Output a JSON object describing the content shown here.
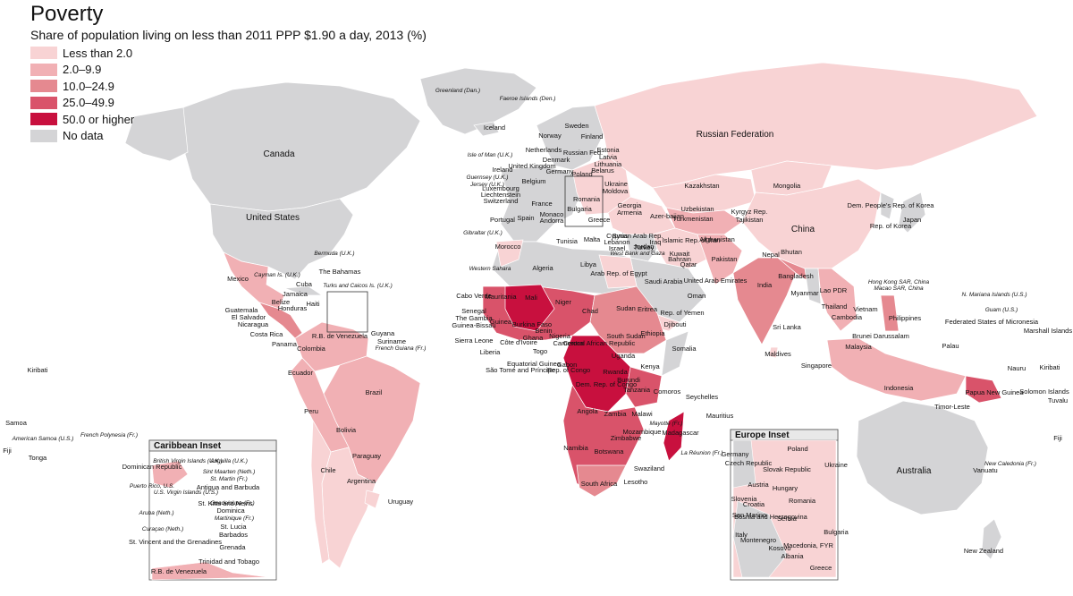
{
  "title": "Poverty",
  "subtitle": "Share of population living on less than 2011 PPP $1.90 a day, 2013 (%)",
  "legend": [
    {
      "label": "Less than 2.0",
      "color": "#f8d3d4"
    },
    {
      "label": "2.0–9.9",
      "color": "#f1b0b4"
    },
    {
      "label": "10.0–24.9",
      "color": "#e58990"
    },
    {
      "label": "25.0–49.9",
      "color": "#d9536a"
    },
    {
      "label": "50.0 or higher",
      "color": "#c8103e"
    },
    {
      "label": "No data",
      "color": "#d4d4d6"
    }
  ],
  "insets": {
    "caribbean": "Caribbean Inset",
    "europe": "Europe Inset"
  },
  "labels": [
    {
      "t": "Greenland (Dan.)",
      "k": "tiny"
    },
    {
      "t": "Faeroe Islands (Den.)",
      "k": "tiny"
    },
    {
      "t": "Iceland"
    },
    {
      "t": "Canada",
      "k": "big"
    },
    {
      "t": "United States",
      "k": "big"
    },
    {
      "t": "Russian Federation",
      "k": "big"
    },
    {
      "t": "Sweden"
    },
    {
      "t": "Norway"
    },
    {
      "t": "Finland"
    },
    {
      "t": "Estonia"
    },
    {
      "t": "Latvia"
    },
    {
      "t": "Lithuania"
    },
    {
      "t": "Russian Fed."
    },
    {
      "t": "Belarus"
    },
    {
      "t": "Netherlands"
    },
    {
      "t": "Denmark"
    },
    {
      "t": "Isle of Man (U.K.)",
      "k": "tiny"
    },
    {
      "t": "United Kingdom"
    },
    {
      "t": "Ireland"
    },
    {
      "t": "Germany"
    },
    {
      "t": "Poland"
    },
    {
      "t": "Guernsey (U.K.)",
      "k": "tiny"
    },
    {
      "t": "Jersey (U.K.)",
      "k": "tiny"
    },
    {
      "t": "Belgium"
    },
    {
      "t": "Luxembourg"
    },
    {
      "t": "Liechtenstein"
    },
    {
      "t": "Switzerland"
    },
    {
      "t": "France"
    },
    {
      "t": "Ukraine"
    },
    {
      "t": "Moldova"
    },
    {
      "t": "Romania"
    },
    {
      "t": "Bulgaria"
    },
    {
      "t": "Greece"
    },
    {
      "t": "Spain"
    },
    {
      "t": "Portugal"
    },
    {
      "t": "Monaco"
    },
    {
      "t": "Andorra"
    },
    {
      "t": "Gibraltar (U.K.)",
      "k": "tiny"
    },
    {
      "t": "Morocco"
    },
    {
      "t": "Tunisia"
    },
    {
      "t": "Malta"
    },
    {
      "t": "Algeria"
    },
    {
      "t": "Libya"
    },
    {
      "t": "Arab Rep. of Egypt"
    },
    {
      "t": "Western Sahara",
      "k": "tiny"
    },
    {
      "t": "Mauritania"
    },
    {
      "t": "Mali"
    },
    {
      "t": "Niger"
    },
    {
      "t": "Chad"
    },
    {
      "t": "Sudan"
    },
    {
      "t": "Eritrea"
    },
    {
      "t": "Cabo Verde"
    },
    {
      "t": "Senegal"
    },
    {
      "t": "The Gambia"
    },
    {
      "t": "Guinea-Bissau"
    },
    {
      "t": "Guinea"
    },
    {
      "t": "Sierra Leone"
    },
    {
      "t": "Liberia"
    },
    {
      "t": "Côte d'Ivoire"
    },
    {
      "t": "Burkina Faso"
    },
    {
      "t": "Ghana"
    },
    {
      "t": "Benin"
    },
    {
      "t": "Togo"
    },
    {
      "t": "Nigeria"
    },
    {
      "t": "Cameroon"
    },
    {
      "t": "Central African Republic"
    },
    {
      "t": "South Sudan"
    },
    {
      "t": "Ethiopia"
    },
    {
      "t": "Djibouti"
    },
    {
      "t": "Somalia"
    },
    {
      "t": "Uganda"
    },
    {
      "t": "Kenya"
    },
    {
      "t": "Rwanda"
    },
    {
      "t": "Burundi"
    },
    {
      "t": "Tanzania"
    },
    {
      "t": "Equatorial Guinea"
    },
    {
      "t": "São Tomé and Príncipe"
    },
    {
      "t": "Gabon"
    },
    {
      "t": "Rep. of Congo"
    },
    {
      "t": "Dem. Rep. of Congo"
    },
    {
      "t": "Angola"
    },
    {
      "t": "Zambia"
    },
    {
      "t": "Malawi"
    },
    {
      "t": "Mozambique"
    },
    {
      "t": "Zimbabwe"
    },
    {
      "t": "Namibia"
    },
    {
      "t": "Botswana"
    },
    {
      "t": "South Africa"
    },
    {
      "t": "Lesotho"
    },
    {
      "t": "Swaziland"
    },
    {
      "t": "Madagascar"
    },
    {
      "t": "Comoros"
    },
    {
      "t": "Mayotte (Fr.)",
      "k": "tiny"
    },
    {
      "t": "Seychelles"
    },
    {
      "t": "Mauritius"
    },
    {
      "t": "La Réunion (Fr.)",
      "k": "tiny"
    },
    {
      "t": "Turkey"
    },
    {
      "t": "Cyprus"
    },
    {
      "t": "Lebanon"
    },
    {
      "t": "Israel"
    },
    {
      "t": "Syrian Arab Rep."
    },
    {
      "t": "Iraq"
    },
    {
      "t": "Jordan"
    },
    {
      "t": "West Bank and Gaza",
      "k": "tiny"
    },
    {
      "t": "Kuwait"
    },
    {
      "t": "Bahrain"
    },
    {
      "t": "Qatar"
    },
    {
      "t": "Saudi Arabia"
    },
    {
      "t": "United Arab Emirates"
    },
    {
      "t": "Oman"
    },
    {
      "t": "Rep. of Yemen"
    },
    {
      "t": "Georgia"
    },
    {
      "t": "Armenia"
    },
    {
      "t": "Azer-baijan"
    },
    {
      "t": "Islamic Rep. of Iran"
    },
    {
      "t": "Kazakhstan"
    },
    {
      "t": "Uzbekistan"
    },
    {
      "t": "Turkmenistan"
    },
    {
      "t": "Kyrgyz Rep."
    },
    {
      "t": "Tajikistan"
    },
    {
      "t": "Afghanistan"
    },
    {
      "t": "Pakistan"
    },
    {
      "t": "India"
    },
    {
      "t": "Nepal"
    },
    {
      "t": "Bhutan"
    },
    {
      "t": "Bangladesh"
    },
    {
      "t": "Sri Lanka"
    },
    {
      "t": "Maldives"
    },
    {
      "t": "Mongolia"
    },
    {
      "t": "China",
      "k": "big"
    },
    {
      "t": "Dem. People's Rep. of Korea"
    },
    {
      "t": "Rep. of Korea"
    },
    {
      "t": "Japan"
    },
    {
      "t": "Myanmar"
    },
    {
      "t": "Lao PDR"
    },
    {
      "t": "Thailand"
    },
    {
      "t": "Vietnam"
    },
    {
      "t": "Cambodia"
    },
    {
      "t": "Hong Kong SAR, China",
      "k": "tiny"
    },
    {
      "t": "Macao SAR, China",
      "k": "tiny"
    },
    {
      "t": "Philippines"
    },
    {
      "t": "Brunei Darussalam"
    },
    {
      "t": "Malaysia"
    },
    {
      "t": "Singapore"
    },
    {
      "t": "Indonesia"
    },
    {
      "t": "Timor-Leste"
    },
    {
      "t": "Papua New Guinea"
    },
    {
      "t": "Australia",
      "k": "big"
    },
    {
      "t": "New Zealand"
    },
    {
      "t": "N. Mariana Islands (U.S.)",
      "k": "tiny"
    },
    {
      "t": "Guam (U.S.)",
      "k": "tiny"
    },
    {
      "t": "Federated States of Micronesia"
    },
    {
      "t": "Palau"
    },
    {
      "t": "Marshall Islands"
    },
    {
      "t": "Kiribati"
    },
    {
      "t": "Nauru"
    },
    {
      "t": "Solomon Islands"
    },
    {
      "t": "Tuvalu"
    },
    {
      "t": "Vanuatu"
    },
    {
      "t": "Fiji"
    },
    {
      "t": "New Caledonia (Fr.)",
      "k": "tiny"
    },
    {
      "t": "Kiribati"
    },
    {
      "t": "Samoa"
    },
    {
      "t": "American Samoa (U.S.)",
      "k": "tiny"
    },
    {
      "t": "Fiji"
    },
    {
      "t": "Tonga"
    },
    {
      "t": "French Polynesia (Fr.)",
      "k": "tiny"
    },
    {
      "t": "Mexico"
    },
    {
      "t": "Bermuda (U.K.)",
      "k": "tiny"
    },
    {
      "t": "The Bahamas"
    },
    {
      "t": "Cayman Is. (U.K.)",
      "k": "tiny"
    },
    {
      "t": "Cuba"
    },
    {
      "t": "Turks and Caicos Is. (U.K.)",
      "k": "tiny"
    },
    {
      "t": "Jamaica"
    },
    {
      "t": "Haiti"
    },
    {
      "t": "Belize"
    },
    {
      "t": "Honduras"
    },
    {
      "t": "Guatemala"
    },
    {
      "t": "El Salvador"
    },
    {
      "t": "Nicaragua"
    },
    {
      "t": "Costa Rica"
    },
    {
      "t": "Panama"
    },
    {
      "t": "R.B. de Venezuela"
    },
    {
      "t": "Colombia"
    },
    {
      "t": "Guyana"
    },
    {
      "t": "Suriname"
    },
    {
      "t": "French Guiana (Fr.)",
      "k": "tiny"
    },
    {
      "t": "Ecuador"
    },
    {
      "t": "Peru"
    },
    {
      "t": "Brazil"
    },
    {
      "t": "Bolivia"
    },
    {
      "t": "Paraguay"
    },
    {
      "t": "Chile"
    },
    {
      "t": "Argentina"
    },
    {
      "t": "Uruguay"
    },
    {
      "t": "Dominican Republic"
    },
    {
      "t": "British Virgin Islands (U.K.)",
      "k": "tiny"
    },
    {
      "t": "Anguilla (U.K.)",
      "k": "tiny"
    },
    {
      "t": "Sint Maarten (Neth.)",
      "k": "tiny"
    },
    {
      "t": "St. Martin (Fr.)",
      "k": "tiny"
    },
    {
      "t": "Puerto Rico, U.S.",
      "k": "tiny"
    },
    {
      "t": "U.S. Virgin Islands (U.S.)",
      "k": "tiny"
    },
    {
      "t": "Antigua and Barbuda"
    },
    {
      "t": "St. Kitts and Nevis"
    },
    {
      "t": "Guadeloupe (Fr.)",
      "k": "tiny"
    },
    {
      "t": "Dominica"
    },
    {
      "t": "Martinique (Fr.)",
      "k": "tiny"
    },
    {
      "t": "Aruba (Neth.)",
      "k": "tiny"
    },
    {
      "t": "Curaçao (Neth.)",
      "k": "tiny"
    },
    {
      "t": "St. Lucia"
    },
    {
      "t": "Barbados"
    },
    {
      "t": "St. Vincent and the Grenadines"
    },
    {
      "t": "Grenada"
    },
    {
      "t": "Trinidad and Tobago"
    },
    {
      "t": "R.B. de Venezuela"
    },
    {
      "t": "Poland"
    },
    {
      "t": "Czech Republic"
    },
    {
      "t": "Germany"
    },
    {
      "t": "Slovak Republic"
    },
    {
      "t": "Ukraine"
    },
    {
      "t": "Austria"
    },
    {
      "t": "Hungary"
    },
    {
      "t": "Slovenia"
    },
    {
      "t": "Romania"
    },
    {
      "t": "Croatia"
    },
    {
      "t": "San Marino"
    },
    {
      "t": "Bosnia and Herzegovina"
    },
    {
      "t": "Serbia"
    },
    {
      "t": "Italy"
    },
    {
      "t": "Montenegro"
    },
    {
      "t": "Bulgaria"
    },
    {
      "t": "Kosovo"
    },
    {
      "t": "Macedonia, FYR"
    },
    {
      "t": "Albania"
    },
    {
      "t": "Greece"
    }
  ]
}
